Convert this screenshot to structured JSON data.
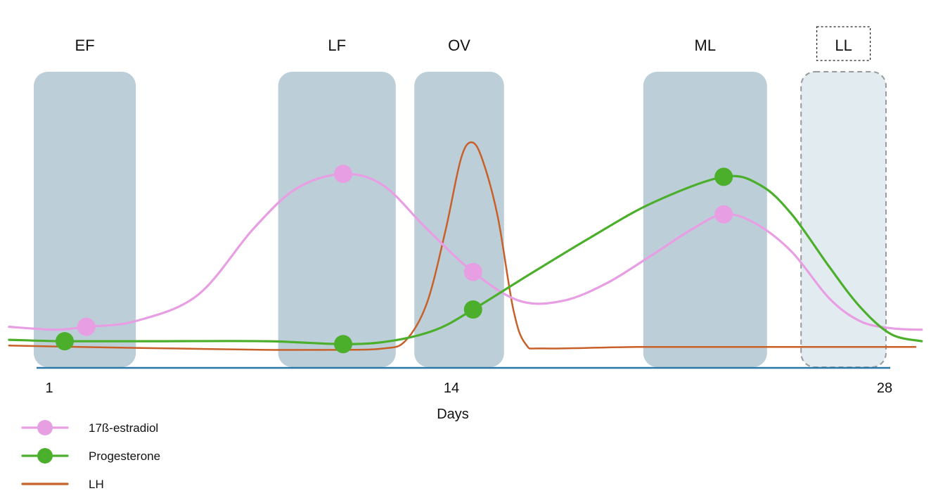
{
  "chart_data": {
    "type": "line",
    "title": "",
    "xlabel": "Days",
    "ylabel": "",
    "xlim": [
      0,
      29
    ],
    "ylim": [
      0,
      100
    ],
    "x_ticks": [
      {
        "value": 1,
        "label": "1"
      },
      {
        "value": 14,
        "label": "14"
      },
      {
        "value": 28,
        "label": "28"
      }
    ],
    "grid": false,
    "legend_position": "bottom-left",
    "phases": [
      {
        "label": "EF",
        "start": 0,
        "end": 3.8,
        "style": "solid",
        "color": "#bccfd9"
      },
      {
        "label": "LF",
        "start": 8.4,
        "end": 12.2,
        "style": "solid",
        "color": "#bccfd9"
      },
      {
        "label": "OV",
        "start": 12.8,
        "end": 15.7,
        "style": "solid",
        "color": "#bccfd9"
      },
      {
        "label": "ML",
        "start": 20.2,
        "end": 24.2,
        "style": "solid",
        "color": "#bccfd9"
      },
      {
        "label": "LL",
        "start": 25.3,
        "end": 29.0,
        "style": "dashed",
        "color": "#e2ecf0"
      }
    ],
    "series": [
      {
        "name": "17ß-estradiol",
        "color": "#e89ee3",
        "markers": [
          [
            2.2,
            14
          ],
          [
            10.5,
            67
          ],
          [
            14.7,
            33
          ],
          [
            22.8,
            53
          ]
        ],
        "curve": [
          [
            -0.3,
            14
          ],
          [
            1.2,
            13
          ],
          [
            2.2,
            14
          ],
          [
            3.8,
            16
          ],
          [
            5.8,
            25
          ],
          [
            7.6,
            48
          ],
          [
            9.0,
            62
          ],
          [
            10.5,
            67
          ],
          [
            11.8,
            63
          ],
          [
            13.2,
            48
          ],
          [
            14.7,
            33
          ],
          [
            16.2,
            23
          ],
          [
            17.6,
            23
          ],
          [
            19.0,
            29
          ],
          [
            20.5,
            39
          ],
          [
            21.8,
            48
          ],
          [
            22.8,
            53
          ],
          [
            23.8,
            50
          ],
          [
            25.0,
            40
          ],
          [
            26.2,
            24
          ],
          [
            27.2,
            16
          ],
          [
            28.2,
            13.5
          ],
          [
            29.2,
            13
          ]
        ]
      },
      {
        "name": "Progesterone",
        "color": "#4caf2c",
        "markers": [
          [
            1.5,
            9
          ],
          [
            10.5,
            8
          ],
          [
            14.7,
            20
          ],
          [
            22.8,
            66
          ]
        ],
        "curve": [
          [
            -0.3,
            9.5
          ],
          [
            1.5,
            9
          ],
          [
            4.5,
            9
          ],
          [
            8.0,
            9
          ],
          [
            10.5,
            8
          ],
          [
            12.0,
            9
          ],
          [
            13.5,
            13
          ],
          [
            14.7,
            20
          ],
          [
            16.5,
            32
          ],
          [
            18.5,
            45
          ],
          [
            20.5,
            57
          ],
          [
            22.8,
            66
          ],
          [
            24.0,
            63
          ],
          [
            25.0,
            53
          ],
          [
            26.2,
            35
          ],
          [
            27.2,
            21
          ],
          [
            28.2,
            11.5
          ],
          [
            29.2,
            9
          ]
        ]
      },
      {
        "name": "LH",
        "color": "#c8602a",
        "markers": [],
        "curve": [
          [
            -0.3,
            7.5
          ],
          [
            2.0,
            7
          ],
          [
            5.0,
            6.5
          ],
          [
            8.0,
            6
          ],
          [
            10.5,
            6
          ],
          [
            11.8,
            6.5
          ],
          [
            12.5,
            9
          ],
          [
            13.2,
            22
          ],
          [
            13.8,
            47
          ],
          [
            14.3,
            72
          ],
          [
            14.65,
            78
          ],
          [
            15.0,
            72
          ],
          [
            15.5,
            52
          ],
          [
            16.0,
            20
          ],
          [
            16.4,
            8
          ],
          [
            17.0,
            6.5
          ],
          [
            20.0,
            7
          ],
          [
            24.0,
            7
          ],
          [
            29.0,
            7
          ]
        ]
      }
    ]
  }
}
